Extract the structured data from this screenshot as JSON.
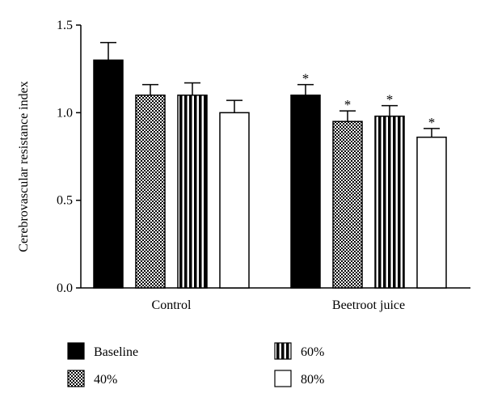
{
  "chart_data": {
    "type": "bar",
    "ylabel": "Cerebrovascular resistance index",
    "xlabel": "",
    "ylim": [
      0,
      1.5
    ],
    "yticks": [
      "0.0",
      "0.5",
      "1.0",
      "1.5"
    ],
    "categories": [
      "Control",
      "Beetroot juice"
    ],
    "series": [
      {
        "name": "Baseline",
        "values": [
          1.3,
          1.1
        ],
        "errors": [
          0.1,
          0.06
        ],
        "pattern": "solid-black"
      },
      {
        "name": "40%",
        "values": [
          1.1,
          0.95
        ],
        "errors": [
          0.06,
          0.06
        ],
        "pattern": "checker"
      },
      {
        "name": "60%",
        "values": [
          1.1,
          0.98
        ],
        "errors": [
          0.07,
          0.06
        ],
        "pattern": "vertical-stripes"
      },
      {
        "name": "80%",
        "values": [
          1.0,
          0.86
        ],
        "errors": [
          0.07,
          0.05
        ],
        "pattern": "white"
      }
    ],
    "annotations": [
      {
        "category": "Beetroot juice",
        "series": "Baseline",
        "text": "*"
      },
      {
        "category": "Beetroot juice",
        "series": "40%",
        "text": "*"
      },
      {
        "category": "Beetroot juice",
        "series": "60%",
        "text": "*"
      },
      {
        "category": "Beetroot juice",
        "series": "80%",
        "text": "*"
      }
    ],
    "legend": {
      "placement": "bottom",
      "columns": 2,
      "order": [
        "Baseline",
        "60%",
        "40%",
        "80%"
      ]
    },
    "grid": false
  }
}
